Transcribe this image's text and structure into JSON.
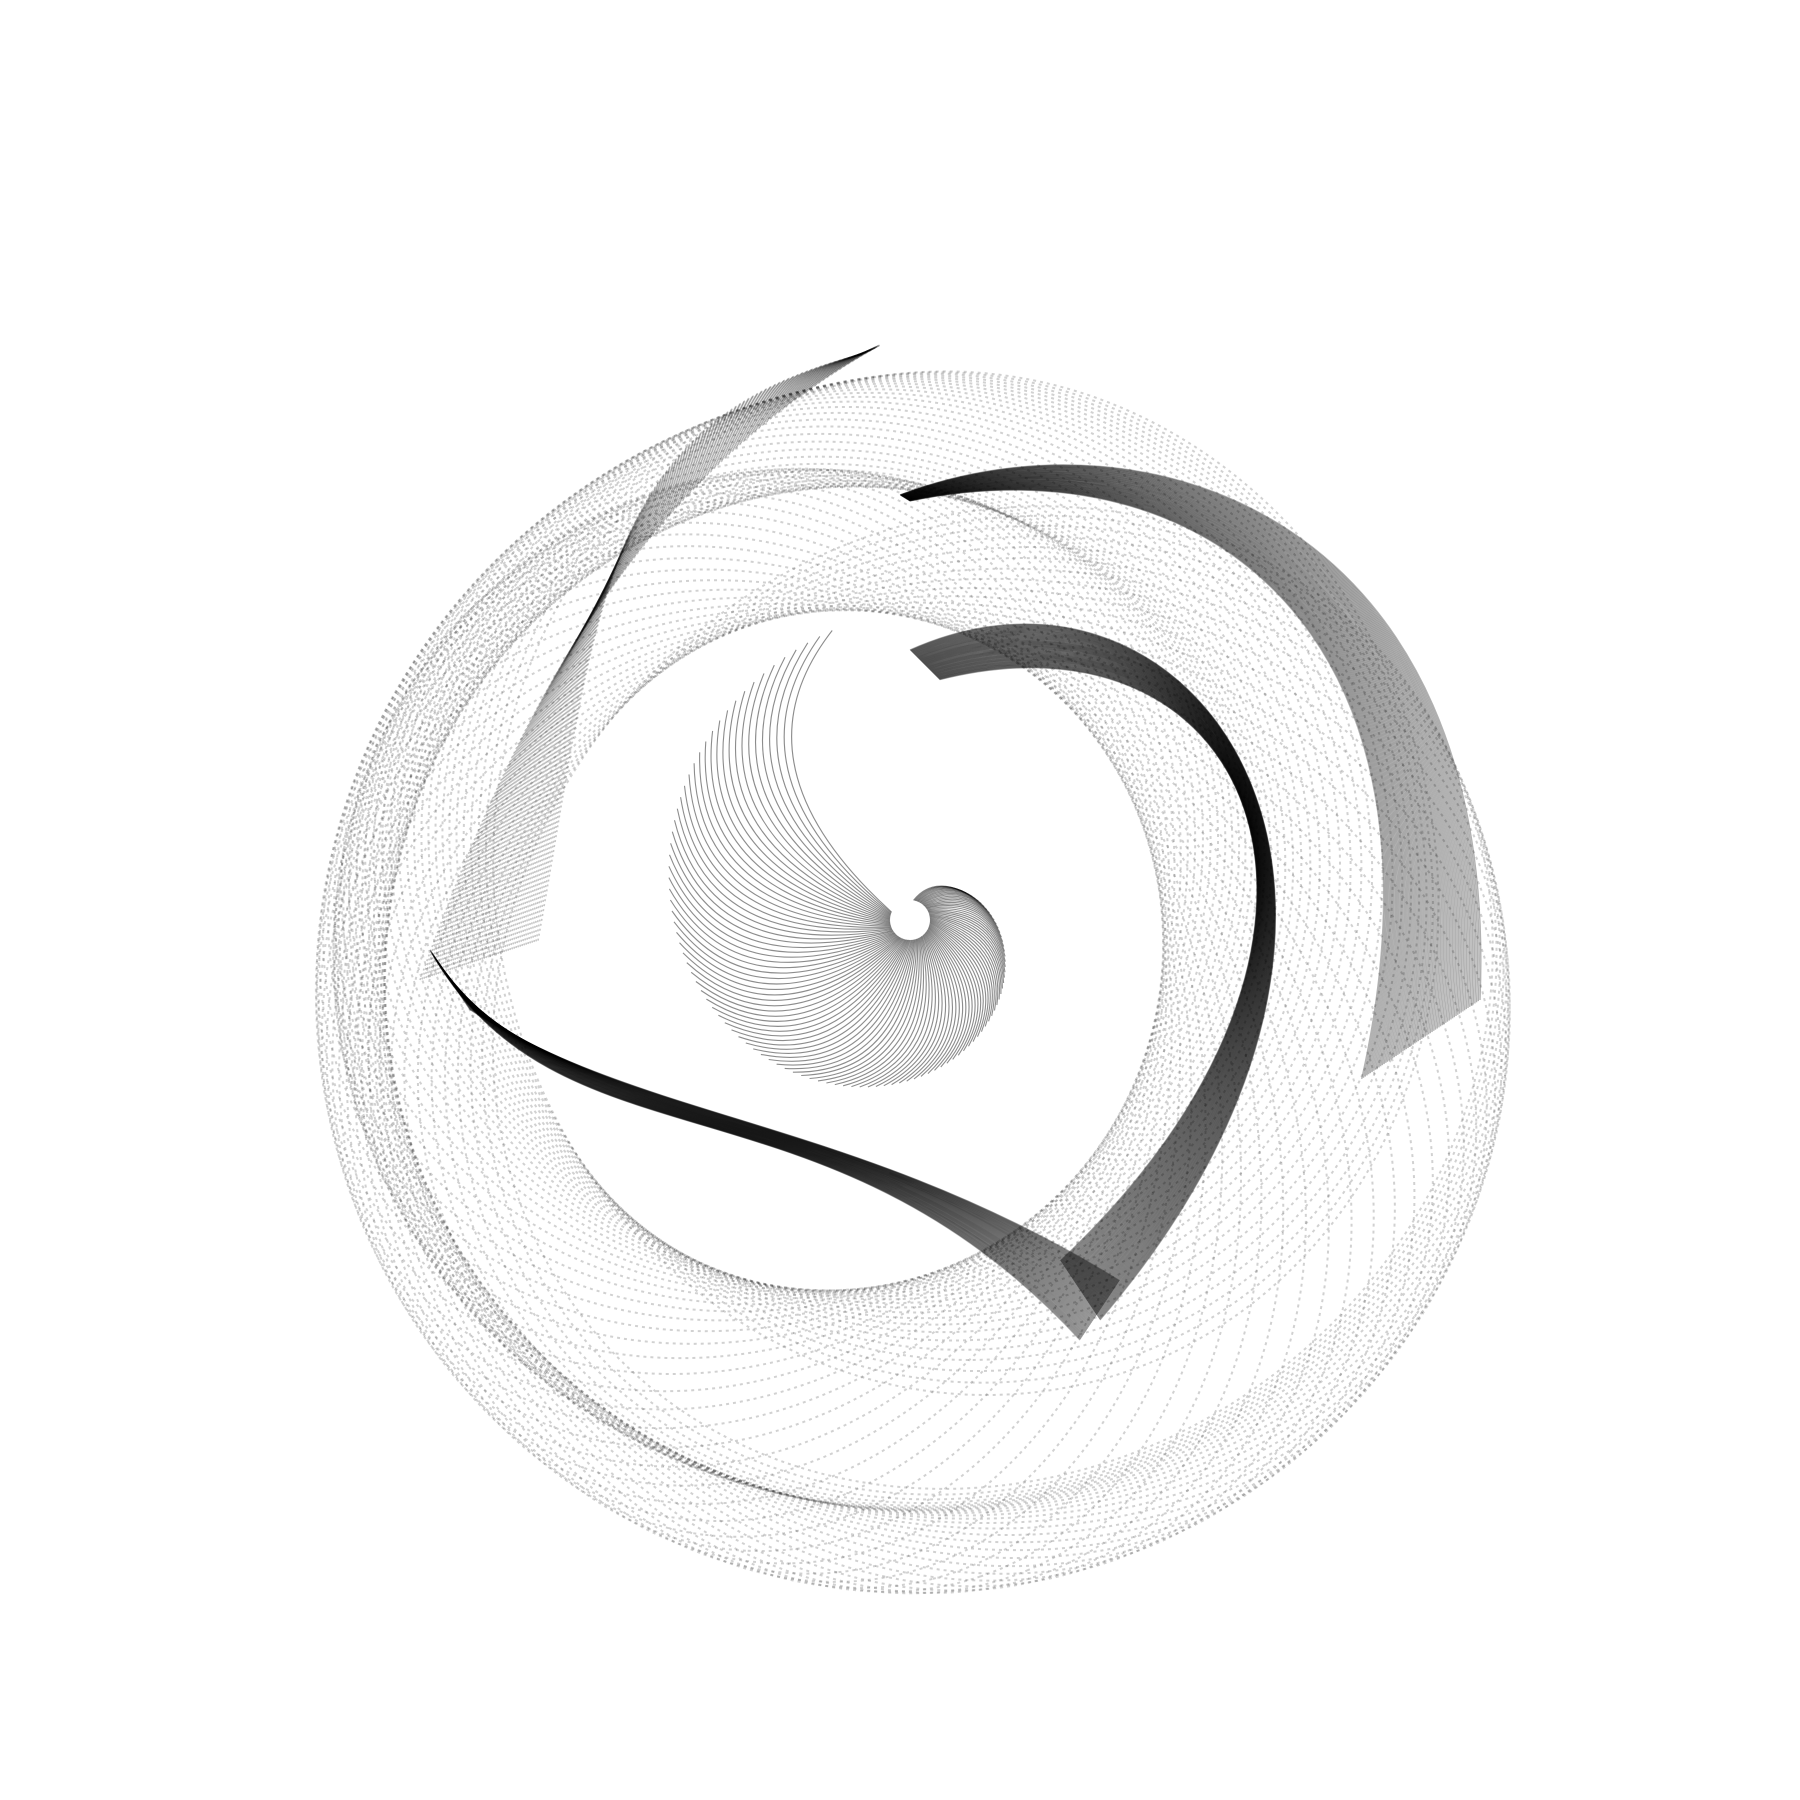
{
  "artwork": {
    "subject": "abstract-spiral-line-art",
    "background_color": "#ffffff",
    "ink_color": "#000000"
  }
}
